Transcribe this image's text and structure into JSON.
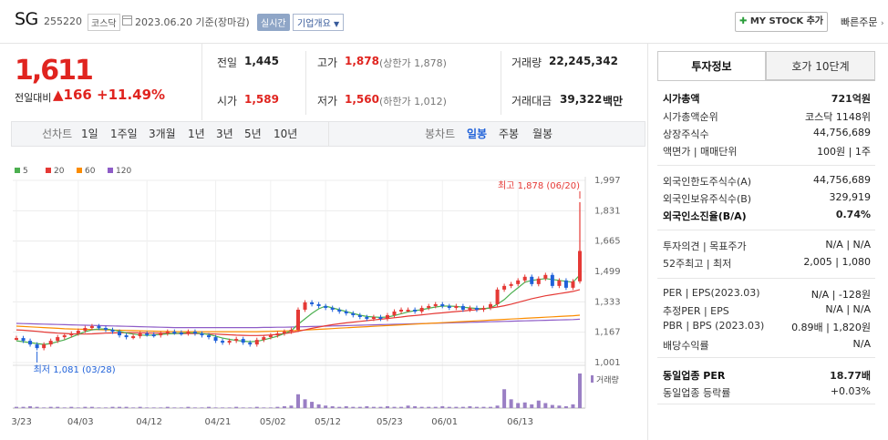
{
  "header": {
    "name": "SG",
    "code": "255220",
    "market": "코스닥",
    "date": "2023.06.20 기준(장마감)",
    "realtime": "실시간",
    "company_info": "기업개요",
    "mystock": "MY STOCK 추가",
    "mystock_plus": "✚",
    "quick_order": "빠른주문"
  },
  "price": {
    "current": "1,611",
    "prev_label": "전일대비",
    "change": "▲166",
    "change_pct": "+11.49%"
  },
  "quotes": {
    "prev": {
      "label": "전일",
      "value": "1,445"
    },
    "high": {
      "label": "고가",
      "value": "1,878",
      "sub": "(상한가 1,878)"
    },
    "volume": {
      "label": "거래량",
      "value": "22,245,342"
    },
    "open": {
      "label": "시가",
      "value": "1,589"
    },
    "low": {
      "label": "저가",
      "value": "1,560",
      "sub": "(하한가 1,012)"
    },
    "amount": {
      "label": "거래대금",
      "value": "39,322",
      "unit": "백만"
    }
  },
  "periods": {
    "label": "선차트",
    "items": [
      "1일",
      "1주일",
      "3개월",
      "1년",
      "3년",
      "5년",
      "10년"
    ],
    "candle_label": "봉차트",
    "candle_items": [
      "일봉",
      "주봉",
      "월봉"
    ],
    "active": "일봉"
  },
  "chart_data": {
    "type": "line",
    "legend": [
      {
        "name": "5",
        "color": "#4caf50"
      },
      {
        "name": "20",
        "color": "#e53935"
      },
      {
        "name": "60",
        "color": "#fb8c00"
      },
      {
        "name": "120",
        "color": "#8e5cc7"
      }
    ],
    "y_ticks": [
      "1,997",
      "1,831",
      "1,665",
      "1,499",
      "1,333",
      "1,167",
      "1,001"
    ],
    "ylim": [
      1001,
      1997
    ],
    "x_ticks": [
      "03/23",
      "04/03",
      "04/12",
      "04/21",
      "05/02",
      "05/12",
      "05/23",
      "06/01",
      "06/13"
    ],
    "max_annotation": "최고 1,878 (06/20)",
    "min_annotation": "최저 1,081 (03/28)",
    "volume_label": "거래량",
    "closes": [
      1135,
      1120,
      1100,
      1080,
      1100,
      1120,
      1140,
      1150,
      1160,
      1175,
      1190,
      1200,
      1190,
      1180,
      1170,
      1150,
      1140,
      1145,
      1160,
      1155,
      1150,
      1160,
      1170,
      1165,
      1160,
      1170,
      1160,
      1150,
      1140,
      1120,
      1110,
      1120,
      1130,
      1110,
      1100,
      1125,
      1140,
      1150,
      1160,
      1170,
      1180,
      1290,
      1330,
      1320,
      1310,
      1300,
      1290,
      1280,
      1270,
      1260,
      1250,
      1240,
      1250,
      1240,
      1260,
      1280,
      1290,
      1290,
      1280,
      1300,
      1310,
      1320,
      1310,
      1300,
      1310,
      1290,
      1300,
      1290,
      1300,
      1320,
      1400,
      1420,
      1430,
      1450,
      1470,
      1430,
      1460,
      1480,
      1420,
      1450,
      1410,
      1445,
      1611
    ],
    "ma5": [
      1120,
      1115,
      1110,
      1105,
      1100,
      1105,
      1115,
      1125,
      1140,
      1155,
      1170,
      1180,
      1185,
      1185,
      1180,
      1172,
      1163,
      1157,
      1152,
      1150,
      1152,
      1155,
      1158,
      1160,
      1162,
      1164,
      1163,
      1160,
      1155,
      1145,
      1135,
      1128,
      1122,
      1118,
      1115,
      1117,
      1125,
      1135,
      1145,
      1160,
      1175,
      1210,
      1240,
      1270,
      1295,
      1310,
      1300,
      1290,
      1280,
      1270,
      1260,
      1253,
      1250,
      1248,
      1250,
      1258,
      1268,
      1278,
      1285,
      1290,
      1298,
      1305,
      1310,
      1310,
      1308,
      1304,
      1300,
      1297,
      1296,
      1300,
      1320,
      1345,
      1380,
      1410,
      1440,
      1450,
      1455,
      1460,
      1455,
      1450,
      1445,
      1440,
      1480
    ],
    "ma20": [
      1180,
      1178,
      1175,
      1172,
      1168,
      1165,
      1162,
      1160,
      1158,
      1157,
      1157,
      1158,
      1160,
      1162,
      1163,
      1164,
      1165,
      1165,
      1164,
      1163,
      1162,
      1162,
      1161,
      1160,
      1160,
      1160,
      1160,
      1159,
      1158,
      1157,
      1155,
      1153,
      1151,
      1150,
      1149,
      1149,
      1150,
      1152,
      1155,
      1160,
      1165,
      1172,
      1180,
      1188,
      1195,
      1202,
      1208,
      1213,
      1218,
      1222,
      1226,
      1230,
      1234,
      1238,
      1242,
      1246,
      1250,
      1255,
      1258,
      1262,
      1266,
      1270,
      1273,
      1277,
      1280,
      1283,
      1287,
      1290,
      1295,
      1300,
      1305,
      1312,
      1320,
      1330,
      1340,
      1350,
      1358,
      1366,
      1372,
      1378,
      1384,
      1390,
      1400
    ],
    "ma60": [
      1200,
      1198,
      1196,
      1194,
      1192,
      1190,
      1188,
      1186,
      1185,
      1184,
      1183,
      1182,
      1181,
      1180,
      1179,
      1178,
      1177,
      1176,
      1175,
      1174,
      1173,
      1172,
      1171,
      1170,
      1170,
      1170,
      1170,
      1170,
      1170,
      1170,
      1170,
      1170,
      1170,
      1170,
      1170,
      1170,
      1171,
      1172,
      1173,
      1174,
      1175,
      1177,
      1179,
      1181,
      1183,
      1185,
      1187,
      1189,
      1191,
      1193,
      1195,
      1197,
      1199,
      1201,
      1203,
      1205,
      1207,
      1209,
      1211,
      1213,
      1215,
      1217,
      1219,
      1221,
      1223,
      1225,
      1227,
      1229,
      1231,
      1233,
      1235,
      1237,
      1239,
      1241,
      1243,
      1245,
      1247,
      1249,
      1251,
      1253,
      1255,
      1257,
      1260
    ],
    "ma120": [
      1215,
      1214,
      1213,
      1212,
      1211,
      1210,
      1209,
      1208,
      1207,
      1206,
      1205,
      1204,
      1203,
      1202,
      1201,
      1200,
      1199,
      1198,
      1197,
      1196,
      1195,
      1194,
      1193,
      1192,
      1192,
      1192,
      1192,
      1192,
      1192,
      1192,
      1192,
      1192,
      1192,
      1192,
      1192,
      1192,
      1193,
      1193,
      1194,
      1194,
      1195,
      1196,
      1197,
      1198,
      1199,
      1200,
      1201,
      1202,
      1203,
      1204,
      1205,
      1206,
      1207,
      1208,
      1209,
      1210,
      1211,
      1212,
      1213,
      1214,
      1215,
      1216,
      1217,
      1218,
      1219,
      1220,
      1221,
      1222,
      1223,
      1224,
      1225,
      1226,
      1227,
      1228,
      1229,
      1230,
      1231,
      1232,
      1233,
      1234,
      1235,
      1236,
      1238
    ],
    "volumes": [
      2,
      2,
      3,
      2,
      1,
      2,
      2,
      1,
      2,
      1,
      2,
      2,
      1,
      1,
      2,
      2,
      2,
      1,
      2,
      1,
      1,
      1,
      2,
      1,
      1,
      2,
      1,
      1,
      2,
      1,
      1,
      1,
      2,
      1,
      1,
      2,
      1,
      1,
      2,
      3,
      4,
      22,
      14,
      10,
      6,
      4,
      3,
      2,
      3,
      2,
      2,
      3,
      2,
      2,
      3,
      2,
      2,
      4,
      3,
      2,
      2,
      2,
      3,
      2,
      2,
      2,
      3,
      2,
      2,
      2,
      4,
      30,
      14,
      8,
      9,
      6,
      12,
      8,
      5,
      4,
      3,
      6,
      55
    ]
  },
  "right": {
    "tabs": [
      "투자정보",
      "호가 10단계"
    ],
    "rows": [
      {
        "k": "시가총액",
        "v": "721억원",
        "bold": true
      },
      {
        "k": "시가총액순위",
        "v": "코스닥 1148위"
      },
      {
        "k": "상장주식수",
        "v": "44,756,689"
      },
      {
        "k": "액면가 | 매매단위",
        "v": "100원 | 1주"
      },
      {
        "k": "외국인한도주식수(A)",
        "v": "44,756,689"
      },
      {
        "k": "외국인보유주식수(B)",
        "v": "329,919"
      },
      {
        "k": "외국인소진율(B/A)",
        "v": "0.74%",
        "bold": true
      },
      {
        "k": "투자의견 | 목표주가",
        "v": "N/A | N/A"
      },
      {
        "k": "52주최고 | 최저",
        "v": "2,005 | 1,080"
      },
      {
        "k": "PER | EPS(2023.03)",
        "v": "N/A | -128원"
      },
      {
        "k": "추정PER | EPS",
        "v": "N/A | N/A"
      },
      {
        "k": "PBR | BPS (2023.03)",
        "v": "0.89배 | 1,820원"
      },
      {
        "k": "배당수익률",
        "v": "N/A"
      },
      {
        "k": "동일업종 PER",
        "v": "18.77배",
        "bold": true
      },
      {
        "k": "동일업종 등락률",
        "v": "+0.03%"
      }
    ]
  }
}
